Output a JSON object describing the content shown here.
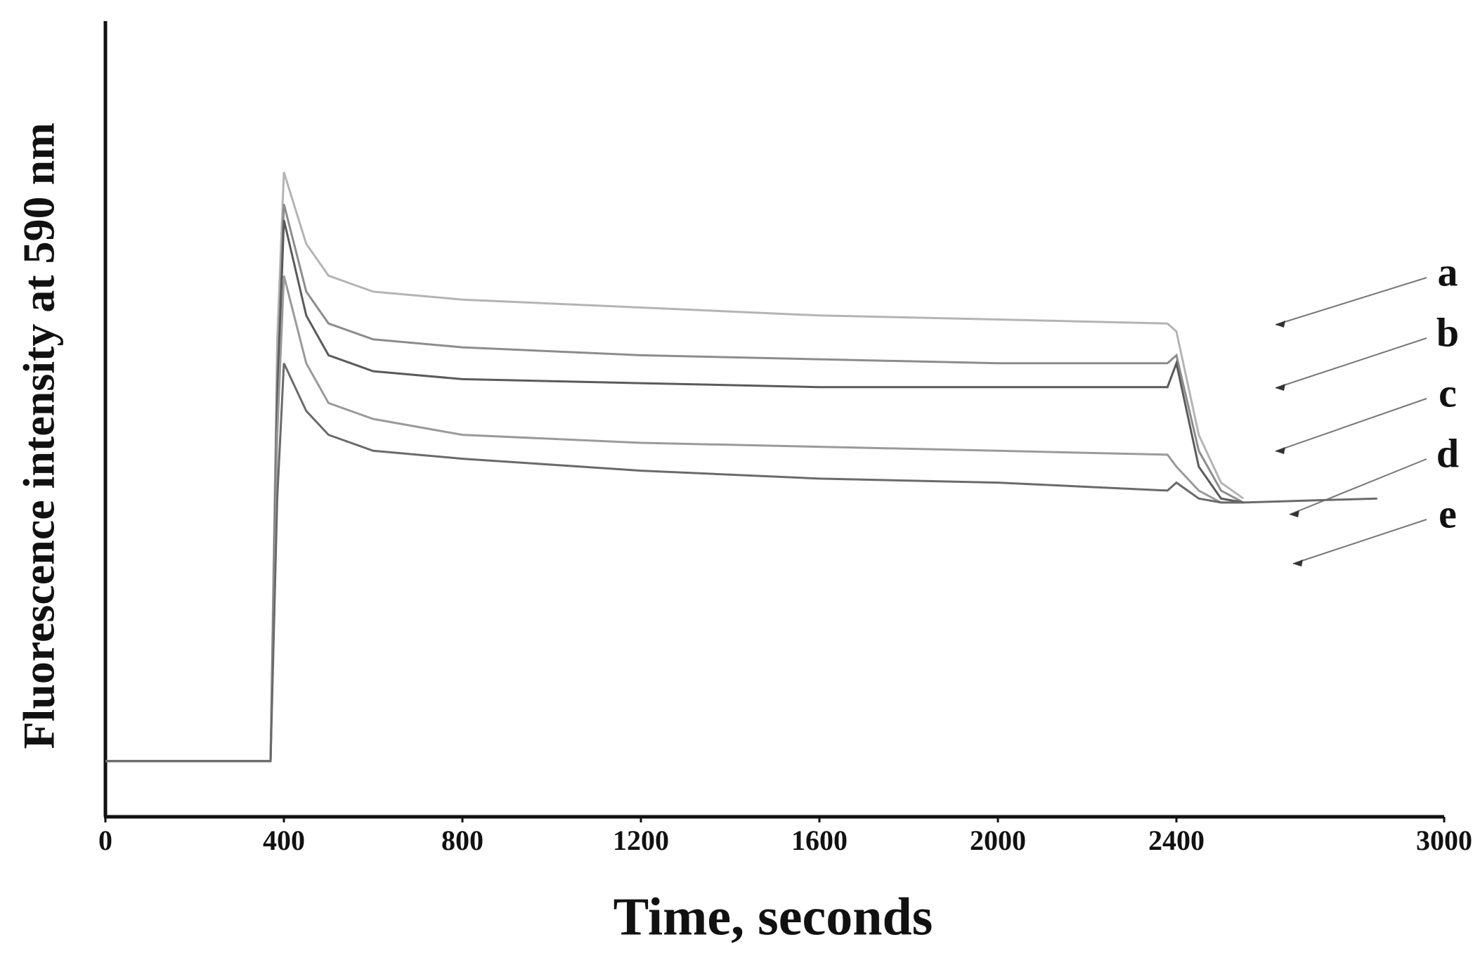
{
  "chart_data": {
    "type": "line",
    "x_label": "Time, seconds",
    "y_label": "Fluorescence intensity at 590 nm",
    "x": [
      0,
      370,
      385,
      400,
      450,
      500,
      600,
      800,
      1200,
      1600,
      2000,
      2380,
      2400,
      2450,
      2500,
      2550,
      2850
    ],
    "series": [
      {
        "name": "a",
        "color": "#b4b4b4",
        "values": [
          7,
          7,
          60,
          81,
          72,
          68,
          66,
          65,
          64,
          63,
          62.5,
          62,
          61,
          48,
          42,
          40,
          null
        ]
      },
      {
        "name": "b",
        "color": "#8c8c8c",
        "values": [
          7,
          7,
          55,
          77,
          66,
          62,
          60,
          59,
          58,
          57.5,
          57,
          57,
          58,
          46,
          41,
          39.5,
          null
        ]
      },
      {
        "name": "c",
        "color": "#5a5a5a",
        "values": [
          7,
          7,
          52,
          75,
          63,
          58,
          56,
          55,
          54.5,
          54,
          54,
          54,
          57,
          44,
          40,
          39.5,
          null
        ]
      },
      {
        "name": "d",
        "color": "#9a9a9a",
        "values": [
          7,
          7,
          48,
          68,
          57,
          52,
          50,
          48,
          47,
          46.5,
          46,
          45.5,
          44,
          41,
          39.5,
          39.5,
          null
        ]
      },
      {
        "name": "e",
        "color": "#6a6a6a",
        "values": [
          7,
          7,
          40,
          57,
          51,
          48,
          46,
          45,
          43.5,
          42.5,
          42,
          41,
          42,
          40,
          39.5,
          39.5,
          40
        ]
      }
    ],
    "xlim": [
      0,
      3000
    ],
    "xticks": [
      0,
      400,
      800,
      1200,
      1600,
      2000,
      2400,
      3000
    ],
    "ylim": [
      0,
      100
    ]
  }
}
